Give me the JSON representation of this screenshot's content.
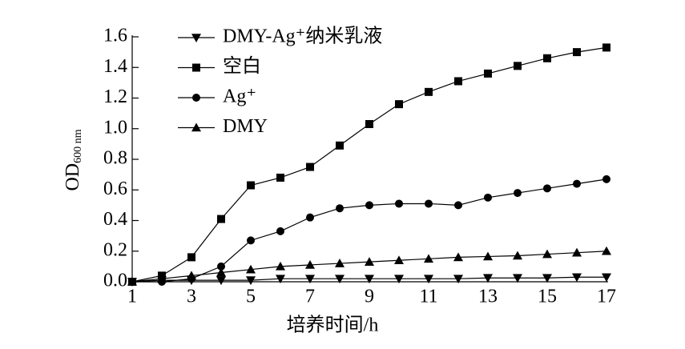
{
  "chart_data": {
    "type": "line",
    "x_label": "培养时间/h",
    "y_label": {
      "main": "OD",
      "sub": "600 nm"
    },
    "x": [
      1,
      2,
      3,
      4,
      5,
      6,
      7,
      8,
      9,
      10,
      11,
      12,
      13,
      14,
      15,
      16,
      17
    ],
    "xlim": [
      1,
      17
    ],
    "xticks": [
      1,
      3,
      5,
      7,
      9,
      11,
      13,
      15,
      17
    ],
    "ylim": [
      0,
      1.6
    ],
    "yticks": [
      {
        "value": 0,
        "label": "0.0"
      },
      0.2,
      0.4,
      0.6,
      0.8,
      {
        "value": 1,
        "label": "1.0"
      },
      1.2,
      1.4,
      1.6
    ],
    "legend": "upper left",
    "series": [
      {
        "name": "DMY-Ag⁺纳米乳液",
        "color": "#000000",
        "marker": "triangle-down",
        "values": [
          0,
          0.01,
          0.01,
          0.01,
          0.01,
          0.02,
          0.02,
          0.02,
          0.02,
          0.02,
          0.02,
          0.02,
          0.025,
          0.025,
          0.025,
          0.03,
          0.03
        ]
      },
      {
        "name": "空白",
        "color": "#000000",
        "marker": "square",
        "values": [
          0,
          0.04,
          0.16,
          0.41,
          0.63,
          0.68,
          0.75,
          0.89,
          1.03,
          1.16,
          1.24,
          1.31,
          1.36,
          1.41,
          1.46,
          1.5,
          1.53
        ]
      },
      {
        "name": "Ag⁺",
        "color": "#000000",
        "marker": "circle",
        "values": [
          0,
          0,
          0.02,
          0.1,
          0.27,
          0.33,
          0.42,
          0.48,
          0.5,
          0.51,
          0.51,
          0.5,
          0.55,
          0.58,
          0.61,
          0.64,
          0.67
        ]
      },
      {
        "name": "DMY",
        "color": "#000000",
        "marker": "triangle-up",
        "values": [
          0,
          0.02,
          0.04,
          0.06,
          0.08,
          0.1,
          0.11,
          0.12,
          0.13,
          0.14,
          0.15,
          0.16,
          0.165,
          0.17,
          0.18,
          0.19,
          0.2
        ]
      }
    ]
  }
}
